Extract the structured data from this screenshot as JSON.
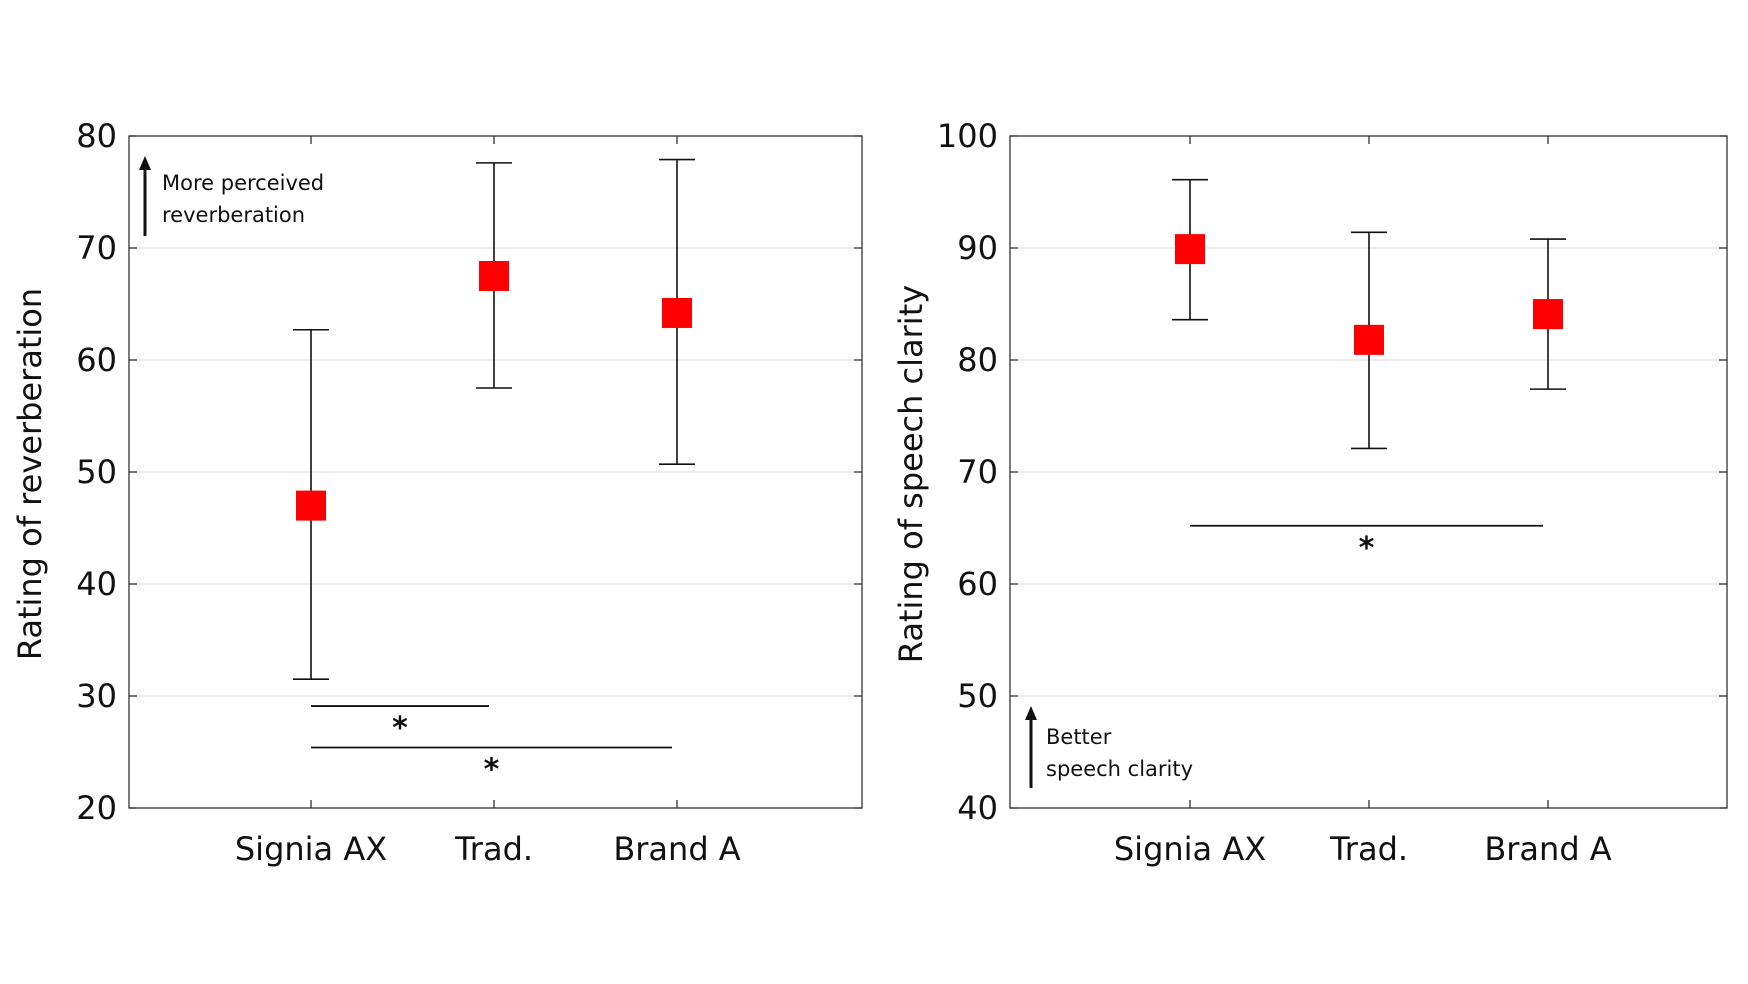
{
  "chart_data": [
    {
      "type": "scatter",
      "ylabel": "Rating of reverberation",
      "xlabel": "",
      "title": "",
      "categories": [
        "Signia AX",
        "Trad.",
        "Brand A"
      ],
      "ylim": [
        20,
        80
      ],
      "yticks": [
        "20",
        "30",
        "40",
        "50",
        "60",
        "70",
        "80"
      ],
      "grid": true,
      "series": [
        {
          "values": [
            47,
            67.5,
            64.2
          ],
          "err_low": [
            31.5,
            57.5,
            50.7
          ],
          "err_high": [
            62.7,
            77.6,
            77.9
          ],
          "color": "#ff0000"
        }
      ],
      "annotation": {
        "lines": [
          "More perceived",
          "reverberation"
        ]
      },
      "significance": [
        {
          "from": 0,
          "to": 1,
          "y": 29.1,
          "label": "*"
        },
        {
          "from": 0,
          "to": 2,
          "y": 25.4,
          "label": "*"
        }
      ]
    },
    {
      "type": "scatter",
      "ylabel": "Rating of speech clarity",
      "xlabel": "",
      "title": "",
      "categories": [
        "Signia AX",
        "Trad.",
        "Brand A"
      ],
      "ylim": [
        40,
        100
      ],
      "yticks": [
        "40",
        "50",
        "60",
        "70",
        "80",
        "90",
        "100"
      ],
      "grid": true,
      "series": [
        {
          "values": [
            89.9,
            81.8,
            84.1
          ],
          "err_low": [
            83.6,
            72.1,
            77.4
          ],
          "err_high": [
            96.1,
            91.4,
            90.8
          ],
          "color": "#ff0000"
        }
      ],
      "annotation": {
        "lines": [
          "Better",
          "speech clarity"
        ]
      },
      "significance": [
        {
          "from": 0,
          "to": 2,
          "y": 65.2,
          "label": "*"
        }
      ]
    }
  ]
}
